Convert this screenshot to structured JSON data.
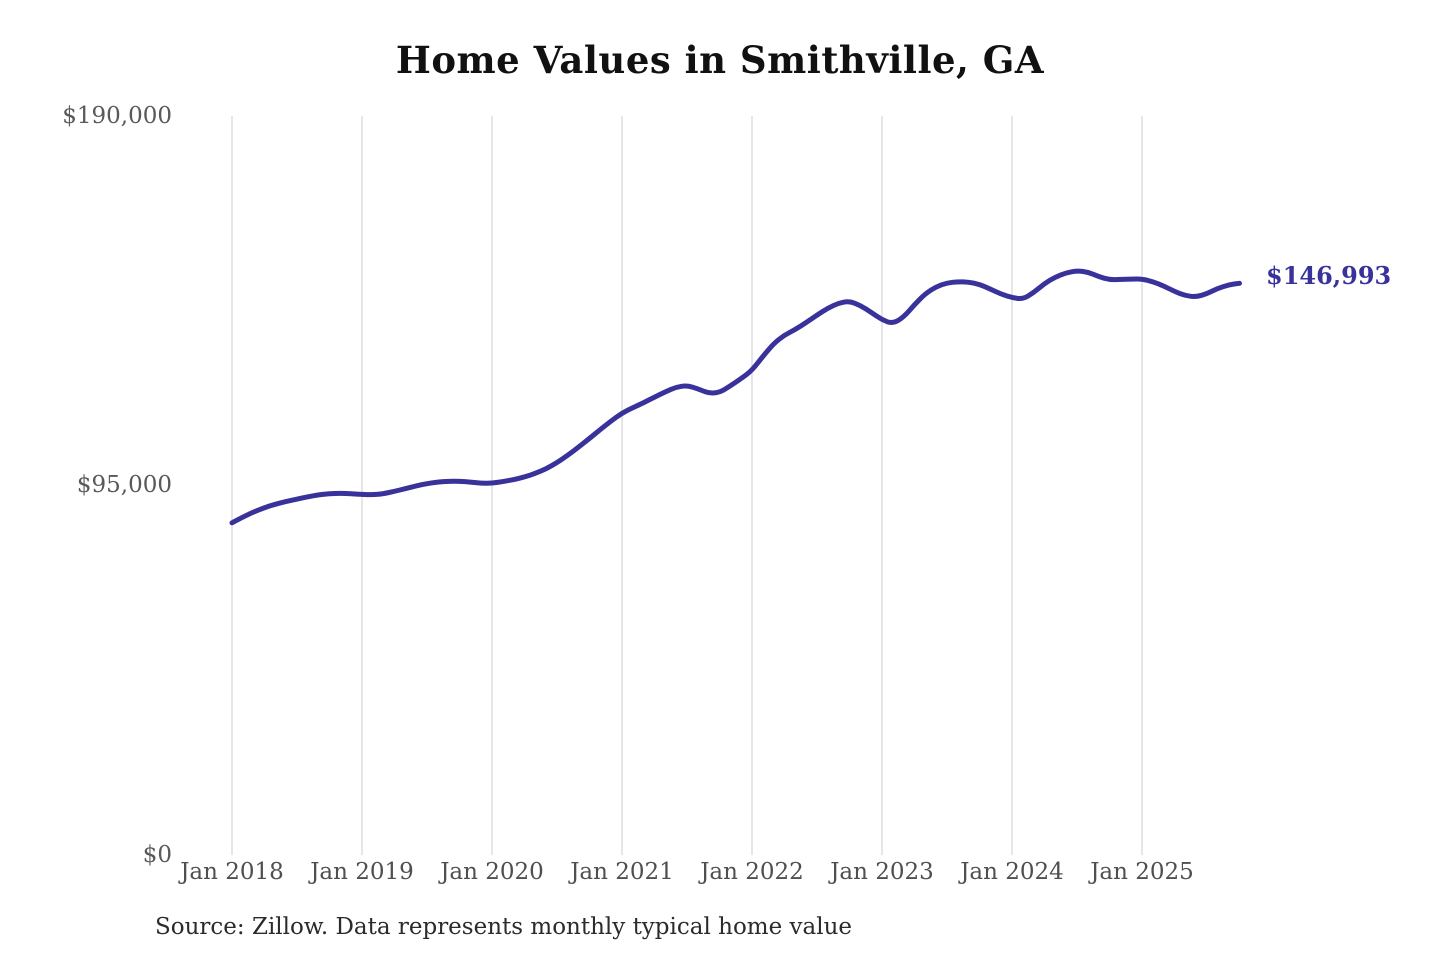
{
  "chart_data": {
    "type": "line",
    "title": "Home Values in Smithville, GA",
    "source_note": "Source: Zillow. Data represents monthly typical home value",
    "end_label": "$146,993",
    "final_value": 146993,
    "ylim": [
      0,
      190000
    ],
    "y_ticks": [
      190000,
      95000,
      0
    ],
    "y_tick_labels": [
      "$190,000",
      "$95,000",
      "$0"
    ],
    "x_tick_labels": [
      "Jan 2018",
      "Jan 2019",
      "Jan 2020",
      "Jan 2021",
      "Jan 2022",
      "Jan 2023",
      "Jan 2024",
      "Jan 2025"
    ],
    "x_start_label": "Jan 2018",
    "x_end_label": "Oct 2025",
    "grid": "vertical-only",
    "legend": "none",
    "series": [
      {
        "name": "Monthly typical home value",
        "x_start": "2018-01",
        "x_interval": "month",
        "values": [
          85400,
          86900,
          88200,
          89300,
          90200,
          90900,
          91500,
          92100,
          92600,
          92900,
          93000,
          92900,
          92700,
          92600,
          92900,
          93500,
          94200,
          94900,
          95500,
          95900,
          96100,
          96100,
          95900,
          95600,
          95600,
          96000,
          96500,
          97200,
          98100,
          99300,
          100900,
          102800,
          104900,
          107100,
          109400,
          111600,
          113600,
          115000,
          116300,
          117700,
          119100,
          120300,
          120700,
          119900,
          118700,
          118900,
          120600,
          122500,
          124600,
          128200,
          131500,
          133700,
          135100,
          136900,
          138800,
          140600,
          141900,
          142400,
          141300,
          139500,
          137600,
          136600,
          138300,
          141500,
          144300,
          146100,
          147100,
          147400,
          147300,
          146700,
          145500,
          144200,
          143300,
          142900,
          144600,
          146900,
          148600,
          149700,
          150200,
          149900,
          148700,
          147900,
          148000,
          148100,
          148100,
          147400,
          146300,
          144900,
          143800,
          143500,
          144300,
          145700,
          146600,
          146993
        ]
      }
    ],
    "colors": {
      "line": "#3a329b",
      "end_label": "#3a329b",
      "gridline": "#cccccc",
      "axis_text": "#595959",
      "title_text": "#111111",
      "source_text": "#2b2b2b",
      "background": "#ffffff"
    }
  }
}
